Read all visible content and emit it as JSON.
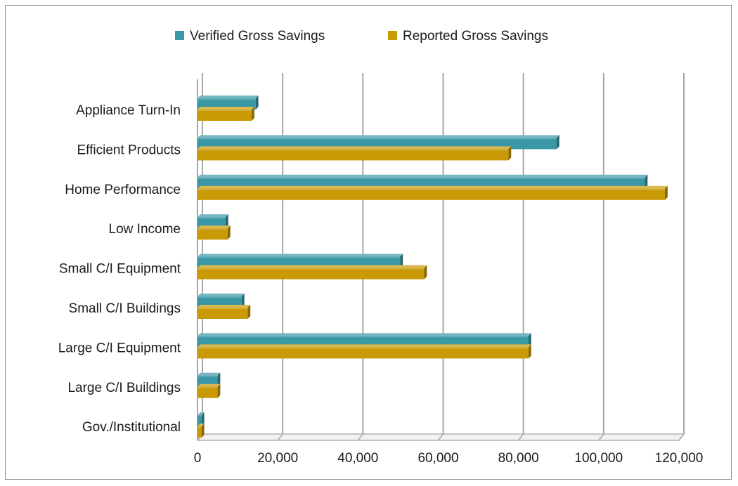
{
  "chart_data": {
    "type": "bar",
    "orientation": "horizontal",
    "categories": [
      "Appliance Turn-In",
      "Efficient Products",
      "Home Performance",
      "Low Income",
      "Small C/I Equipment",
      "Small C/I Buildings",
      "Large C/I Equipment",
      "Large C/I Buildings",
      "Gov./Institutional"
    ],
    "series": [
      {
        "name": "Verified Gross Savings",
        "color": "#3a97a6",
        "values": [
          14500,
          89500,
          111500,
          7000,
          50500,
          11000,
          82500,
          5000,
          1000
        ]
      },
      {
        "name": "Reported Gross Savings",
        "color": "#c99a06",
        "values": [
          13500,
          77500,
          116500,
          7500,
          56500,
          12500,
          82500,
          5000,
          1000
        ]
      }
    ],
    "xlim": [
      0,
      120000
    ],
    "xticks": [
      "0",
      "20,000",
      "40,000",
      "60,000",
      "80,000",
      "100,000",
      "120,000"
    ],
    "tick_values": [
      0,
      20000,
      40000,
      60000,
      80000,
      100000,
      120000
    ],
    "legend_position": "top",
    "grid": true
  }
}
